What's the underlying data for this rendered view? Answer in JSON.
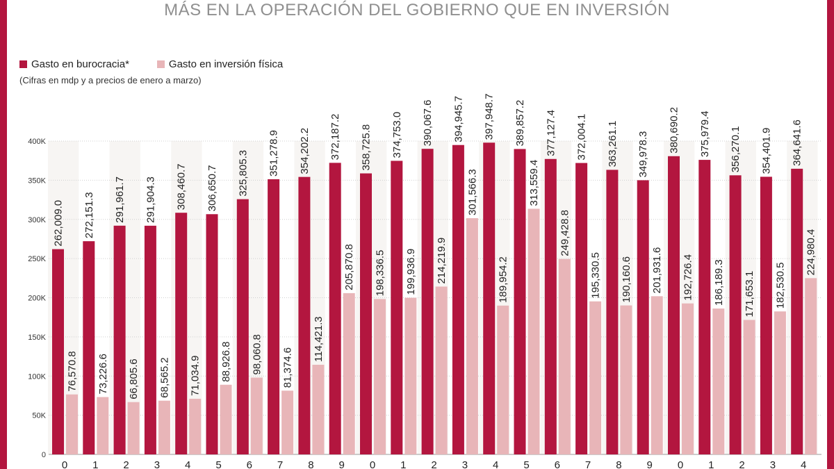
{
  "colors": {
    "burocracia": "#b3163f",
    "inversion": "#e8b5b8",
    "accent": "#b3163f"
  },
  "chart_data": {
    "type": "bar",
    "title": "MÁS EN LA OPERACIÓN DEL GOBIERNO QUE EN INVERSIÓN",
    "note": "(Cifras en mdp y a precios de enero a marzo)",
    "ylim": [
      0,
      400000
    ],
    "yticks": [
      0,
      50000,
      100000,
      150000,
      200000,
      250000,
      300000,
      350000,
      400000
    ],
    "ytick_labels": [
      "0",
      "50K",
      "100K",
      "150K",
      "200K",
      "250K",
      "300K",
      "350K",
      "400K"
    ],
    "categories": [
      "0",
      "1",
      "2",
      "3",
      "4",
      "5",
      "6",
      "7",
      "8",
      "9",
      "0",
      "1",
      "2",
      "3",
      "4",
      "5",
      "6",
      "7",
      "8",
      "9",
      "0",
      "1",
      "2",
      "3",
      "4"
    ],
    "series": [
      {
        "name": "Gasto en burocracia*",
        "values": [
          262009.0,
          272151.3,
          291961.7,
          291904.3,
          308460.7,
          306650.7,
          325805.3,
          351278.9,
          354202.2,
          372187.2,
          358725.8,
          374753.0,
          390067.6,
          394945.7,
          397948.7,
          389857.2,
          377127.4,
          372004.1,
          363261.1,
          349978.3,
          380690.2,
          375979.4,
          356270.1,
          354401.9,
          364641.6
        ],
        "labels": [
          "262,009.0",
          "272,151.3",
          "291,961.7",
          "291,904.3",
          "308,460.7",
          "306,650.7",
          "325,805.3",
          "351,278.9",
          "354,202.2",
          "372,187.2",
          "358,725.8",
          "374,753.0",
          "390,067.6",
          "394,945.7",
          "397,948.7",
          "389,857.2",
          "377,127.4",
          "372,004.1",
          "363,261.1",
          "349,978.3",
          "380,690.2",
          "375,979.4",
          "356,270.1",
          "354,401.9",
          "364,641.6"
        ]
      },
      {
        "name": "Gasto en inversión física",
        "values": [
          76570.8,
          73226.6,
          66805.6,
          68565.2,
          71034.9,
          88926.8,
          98060.8,
          81374.6,
          114421.3,
          205870.8,
          198336.5,
          199936.9,
          214219.9,
          301566.3,
          189954.2,
          313559.4,
          249428.8,
          195330.5,
          190160.6,
          201931.6,
          192726.4,
          186189.3,
          171653.1,
          182530.5,
          224980.4
        ],
        "labels": [
          "76,570.8",
          "73,226.6",
          "66,805.6",
          "68,565.2",
          "71,034.9",
          "88,926.8",
          "98,060.8",
          "81,374.6",
          "114,421.3",
          "205,870.8",
          "198,336.5",
          "199,936.9",
          "214,219.9",
          "301,566.3",
          "189,954.2",
          "313,559.4",
          "249,428.8",
          "195,330.5",
          "190,160.6",
          "201,931.6",
          "192,726.4",
          "186,189.3",
          "171,653.1",
          "182,530.5",
          "224,980.4"
        ]
      }
    ]
  }
}
